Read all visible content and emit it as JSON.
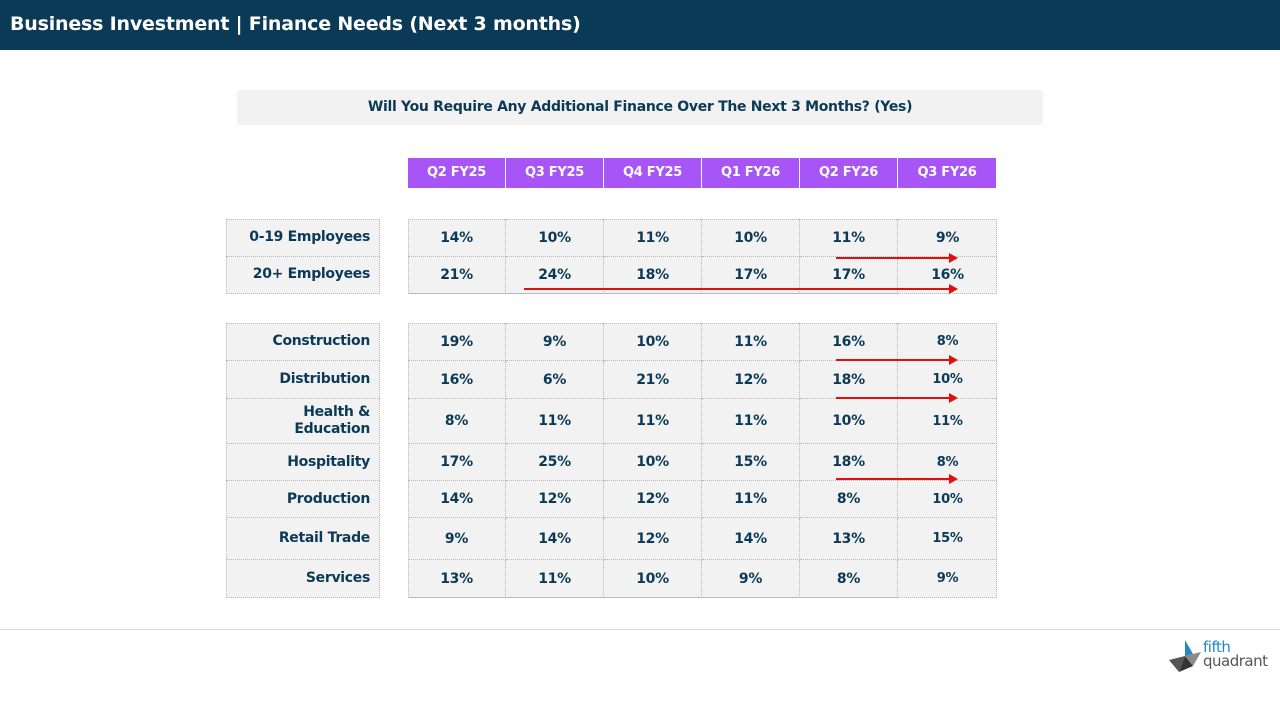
{
  "header": {
    "title": "Business Investment | Finance Needs (Next 3 months)"
  },
  "question": "Will You Require Any Additional Finance Over The Next 3 Months? (Yes)",
  "columns": [
    "Q2 FY25",
    "Q3 FY25",
    "Q4 FY25",
    "Q1 FY26",
    "Q2 FY26",
    "Q3 FY26"
  ],
  "size_rows": [
    {
      "label": "0-19 Employees",
      "values": [
        "14%",
        "10%",
        "11%",
        "10%",
        "11%",
        "9%"
      ]
    },
    {
      "label": "20+ Employees",
      "values": [
        "21%",
        "24%",
        "18%",
        "17%",
        "17%",
        "16%"
      ]
    }
  ],
  "industry_rows": [
    {
      "label": "Construction",
      "values": [
        "19%",
        "9%",
        "10%",
        "11%",
        "16%",
        "8%"
      ]
    },
    {
      "label": "Distribution",
      "values": [
        "16%",
        "6%",
        "21%",
        "12%",
        "18%",
        "10%"
      ]
    },
    {
      "label": "Health & Education",
      "values": [
        "8%",
        "11%",
        "11%",
        "11%",
        "10%",
        "11%"
      ]
    },
    {
      "label": "Hospitality",
      "values": [
        "17%",
        "25%",
        "10%",
        "15%",
        "18%",
        "8%"
      ]
    },
    {
      "label": "Production",
      "values": [
        "14%",
        "12%",
        "12%",
        "11%",
        "8%",
        "10%"
      ]
    },
    {
      "label": "Retail Trade",
      "values": [
        "9%",
        "14%",
        "12%",
        "14%",
        "13%",
        "15%"
      ]
    },
    {
      "label": "Services",
      "values": [
        "13%",
        "11%",
        "10%",
        "9%",
        "8%",
        "9%"
      ]
    }
  ],
  "trend_arrow_color": "#e01010",
  "brand": {
    "line1": "fifth",
    "line2": "quadrant"
  }
}
